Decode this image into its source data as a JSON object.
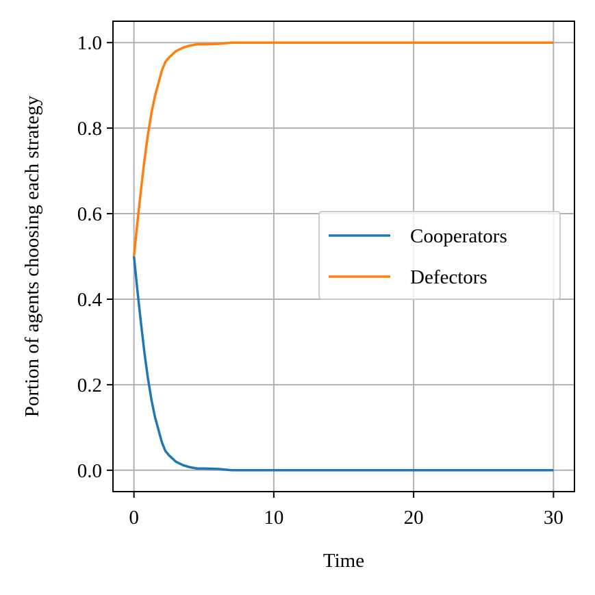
{
  "chart_data": {
    "type": "line",
    "xlabel": "Time",
    "ylabel": "Portion of agents choosing each strategy",
    "xlim": [
      -1.5,
      31.5
    ],
    "ylim": [
      -0.05,
      1.05
    ],
    "xticks": [
      0,
      10,
      20,
      30
    ],
    "xtick_labels": [
      "0",
      "10",
      "20",
      "30"
    ],
    "yticks": [
      0.0,
      0.2,
      0.4,
      0.6,
      0.8,
      1.0
    ],
    "ytick_labels": [
      "0.0",
      "0.2",
      "0.4",
      "0.6",
      "0.8",
      "1.0"
    ],
    "grid": true,
    "legend_position": "center-right",
    "x": [
      0,
      0.25,
      0.5,
      0.75,
      1,
      1.25,
      1.5,
      1.75,
      2,
      2.25,
      2.5,
      3,
      3.5,
      4,
      4.5,
      5,
      6,
      7,
      8,
      10,
      15,
      20,
      25,
      30
    ],
    "series": [
      {
        "name": "Cooperators",
        "color": "#1f77b4",
        "values": [
          0.5,
          0.42,
          0.345,
          0.275,
          0.215,
          0.165,
          0.125,
          0.095,
          0.065,
          0.045,
          0.035,
          0.02,
          0.012,
          0.007,
          0.004,
          0.004,
          0.003,
          0.0,
          0.0,
          0.0,
          0.0,
          0.0,
          0.0,
          0.0
        ]
      },
      {
        "name": "Defectors",
        "color": "#ff7f0e",
        "values": [
          0.5,
          0.58,
          0.655,
          0.725,
          0.785,
          0.835,
          0.875,
          0.905,
          0.935,
          0.955,
          0.965,
          0.98,
          0.988,
          0.993,
          0.996,
          0.996,
          0.997,
          1.0,
          1.0,
          1.0,
          1.0,
          1.0,
          1.0,
          1.0
        ]
      }
    ]
  }
}
